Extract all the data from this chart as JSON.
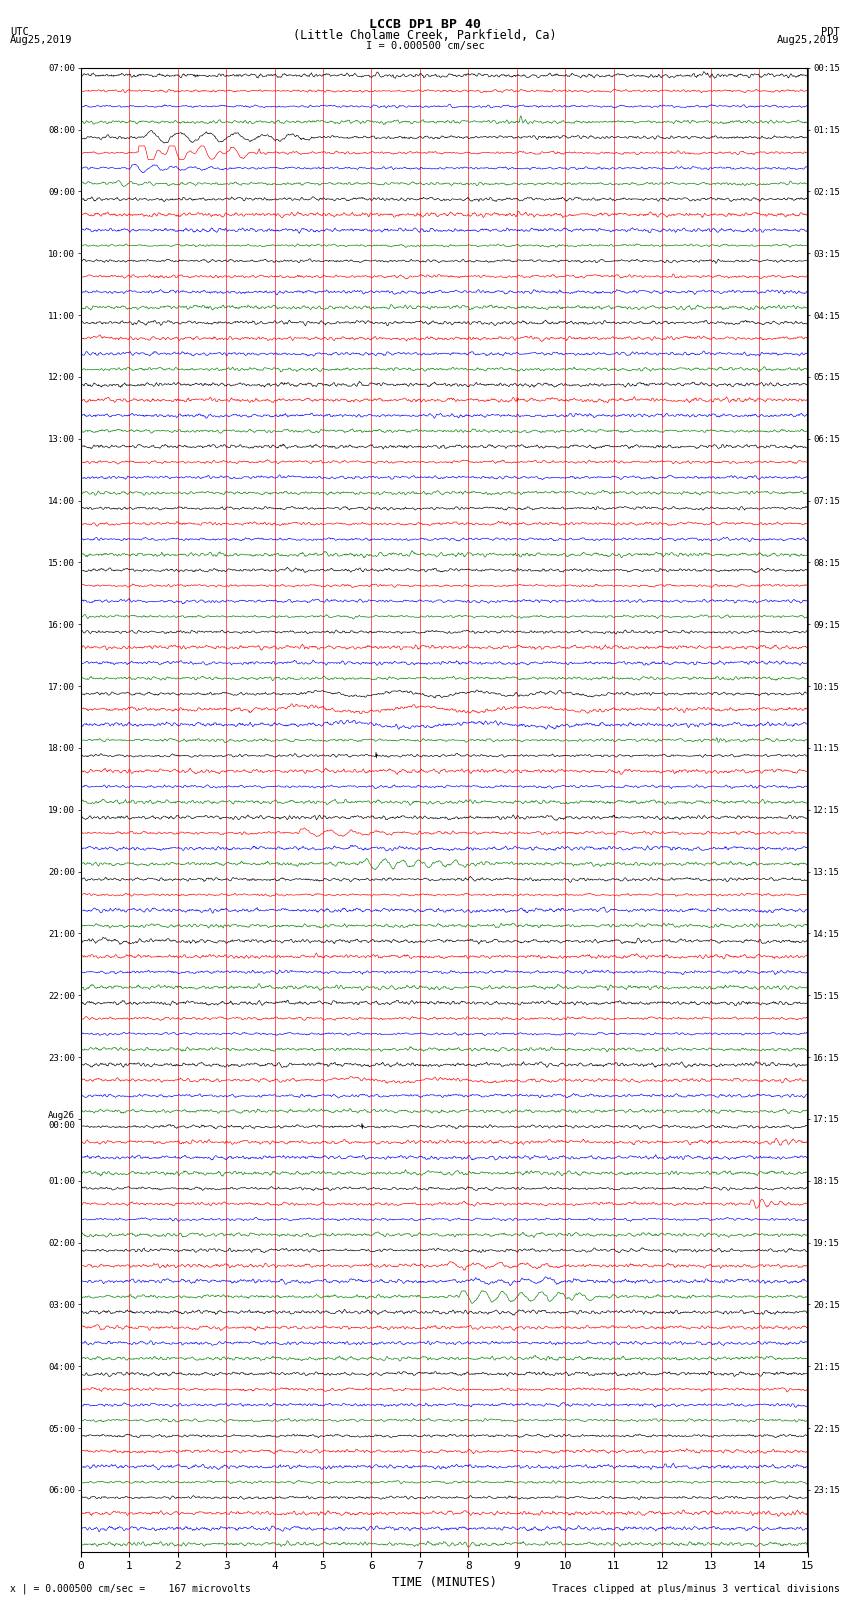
{
  "title_line1": "LCCB DP1 BP 40",
  "title_line2": "(Little Cholame Creek, Parkfield, Ca)",
  "left_label_top": "UTC",
  "left_label_bottom": "Aug25,2019",
  "right_label_top": "PDT",
  "right_label_bottom": "Aug25,2019",
  "scale_text": "I = 0.000500 cm/sec",
  "footer_left": "x | = 0.000500 cm/sec =    167 microvolts",
  "footer_right": "Traces clipped at plus/minus 3 vertical divisions",
  "xlabel": "TIME (MINUTES)",
  "xlim": [
    0,
    15
  ],
  "xticks": [
    0,
    1,
    2,
    3,
    4,
    5,
    6,
    7,
    8,
    9,
    10,
    11,
    12,
    13,
    14,
    15
  ],
  "colors": [
    "black",
    "red",
    "blue",
    "green"
  ],
  "background": "white",
  "fig_width": 8.5,
  "fig_height": 16.13,
  "num_rows": 96,
  "row_labels_left": [
    "07:00",
    "",
    "",
    "",
    "08:00",
    "",
    "",
    "",
    "09:00",
    "",
    "",
    "",
    "10:00",
    "",
    "",
    "",
    "11:00",
    "",
    "",
    "",
    "12:00",
    "",
    "",
    "",
    "13:00",
    "",
    "",
    "",
    "14:00",
    "",
    "",
    "",
    "15:00",
    "",
    "",
    "",
    "16:00",
    "",
    "",
    "",
    "17:00",
    "",
    "",
    "",
    "18:00",
    "",
    "",
    "",
    "19:00",
    "",
    "",
    "",
    "20:00",
    "",
    "",
    "",
    "21:00",
    "",
    "",
    "",
    "22:00",
    "",
    "",
    "",
    "23:00",
    "",
    "",
    "",
    "Aug26\n00:00",
    "",
    "",
    "",
    "01:00",
    "",
    "",
    "",
    "02:00",
    "",
    "",
    "",
    "03:00",
    "",
    "",
    "",
    "04:00",
    "",
    "",
    "",
    "05:00",
    "",
    "",
    "",
    "06:00",
    "",
    "",
    ""
  ],
  "row_labels_right": [
    "00:15",
    "",
    "",
    "",
    "01:15",
    "",
    "",
    "",
    "02:15",
    "",
    "",
    "",
    "03:15",
    "",
    "",
    "",
    "04:15",
    "",
    "",
    "",
    "05:15",
    "",
    "",
    "",
    "06:15",
    "",
    "",
    "",
    "07:15",
    "",
    "",
    "",
    "08:15",
    "",
    "",
    "",
    "09:15",
    "",
    "",
    "",
    "10:15",
    "",
    "",
    "",
    "11:15",
    "",
    "",
    "",
    "12:15",
    "",
    "",
    "",
    "13:15",
    "",
    "",
    "",
    "14:15",
    "",
    "",
    "",
    "15:15",
    "",
    "",
    "",
    "16:15",
    "",
    "",
    "",
    "17:15",
    "",
    "",
    "",
    "18:15",
    "",
    "",
    "",
    "19:15",
    "",
    "",
    "",
    "20:15",
    "",
    "",
    "",
    "21:15",
    "",
    "",
    "",
    "22:15",
    "",
    "",
    "",
    "23:15",
    "",
    "",
    ""
  ]
}
